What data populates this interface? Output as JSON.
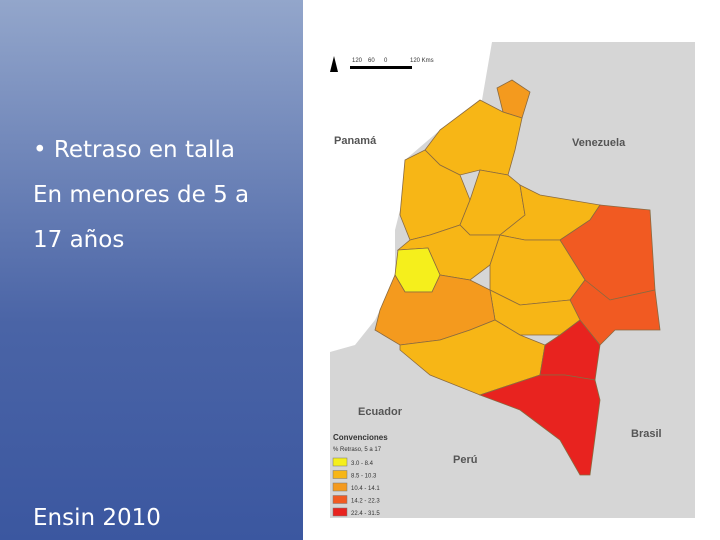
{
  "slide": {
    "text_lines": [
      "• Retraso en talla",
      "En menores de 5 a",
      "17 años"
    ],
    "source": "Ensin 2010"
  },
  "map": {
    "scale_labels": [
      "120",
      "60",
      "0",
      "120 Kms"
    ],
    "countries": [
      "Panamá",
      "Venezuela",
      "Ecuador",
      "Brasil",
      "Perú"
    ],
    "legend": {
      "title": "Convenciones",
      "subtitle": "% Retraso, 5 a 17",
      "items": [
        {
          "label": "3.0 - 8.4",
          "color": "#f5ef1c"
        },
        {
          "label": "8.5 - 10.3",
          "color": "#f7b616"
        },
        {
          "label": "10.4 - 14.1",
          "color": "#f49a1e"
        },
        {
          "label": "14.2 - 22.3",
          "color": "#f15a22"
        },
        {
          "label": "22.4 - 31.5",
          "color": "#e8231f"
        }
      ]
    }
  }
}
